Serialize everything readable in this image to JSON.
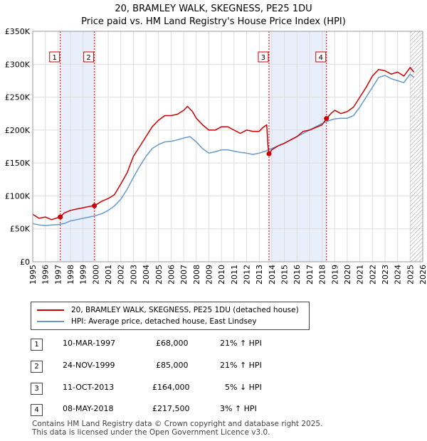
{
  "title_line1": "20, BRAMLEY WALK, SKEGNESS, PE25 1DU",
  "title_line2": "Price paid vs. HM Land Registry's House Price Index (HPI)",
  "legend": {
    "red_label": "20, BRAMLEY WALK, SKEGNESS, PE25 1DU (detached house)",
    "blue_label": "HPI: Average price, detached house, East Lindsey"
  },
  "transactions": [
    {
      "num": "1",
      "date": "10-MAR-1997",
      "price": "£68,000",
      "hpi": "21% ↑ HPI"
    },
    {
      "num": "2",
      "date": "24-NOV-1999",
      "price": "£85,000",
      "hpi": "21% ↑ HPI"
    },
    {
      "num": "3",
      "date": "11-OCT-2013",
      "price": "£164,000",
      "hpi": "5% ↓ HPI"
    },
    {
      "num": "4",
      "date": "08-MAY-2018",
      "price": "£217,500",
      "hpi": "3% ↑ HPI"
    }
  ],
  "footer_line1": "Contains HM Land Registry data © Crown copyright and database right 2025.",
  "footer_line2": "This data is licensed under the Open Government Licence v3.0.",
  "colors": {
    "red": "#cc0000",
    "blue": "#6699cc",
    "band": "#e8eefa",
    "grid": "#dddddd"
  },
  "chart_data": {
    "type": "line",
    "xlim": [
      1995,
      2026
    ],
    "ylim": [
      0,
      350000
    ],
    "yticks": [
      0,
      50000,
      100000,
      150000,
      200000,
      250000,
      300000,
      350000
    ],
    "ytick_labels": [
      "£0",
      "£50K",
      "£100K",
      "£150K",
      "£200K",
      "£250K",
      "£300K",
      "£350K"
    ],
    "xticks": [
      1995,
      1996,
      1997,
      1998,
      1999,
      2000,
      2001,
      2002,
      2003,
      2004,
      2005,
      2006,
      2007,
      2008,
      2009,
      2010,
      2011,
      2012,
      2013,
      2014,
      2015,
      2016,
      2017,
      2018,
      2019,
      2020,
      2021,
      2022,
      2023,
      2024,
      2025,
      2026
    ],
    "xtick_labels": [
      "1995",
      "1996",
      "1997",
      "1998",
      "1999",
      "2000",
      "2001",
      "2002",
      "2003",
      "2004",
      "2005",
      "2006",
      "2007",
      "2008",
      "2009",
      "2010",
      "2011",
      "2012",
      "2013",
      "2014",
      "2015",
      "2016",
      "2017",
      "2018",
      "2019",
      "2020",
      "2021",
      "2022",
      "2023",
      "2024",
      "2025",
      "2026"
    ],
    "shaded_bands": [
      [
        1997.19,
        1999.9
      ],
      [
        2013.78,
        2018.35
      ]
    ],
    "hatch_from": 2025.0,
    "markers": [
      {
        "label": "1",
        "x": 1997.19,
        "y": 68000
      },
      {
        "label": "2",
        "x": 1999.9,
        "y": 85000
      },
      {
        "label": "3",
        "x": 2013.78,
        "y": 164000
      },
      {
        "label": "4",
        "x": 2018.35,
        "y": 217500
      }
    ],
    "series": [
      {
        "name": "20, BRAMLEY WALK, SKEGNESS, PE25 1DU (detached house)",
        "color": "#cc0000",
        "x": [
          1995.0,
          1995.5,
          1996.0,
          1996.5,
          1997.0,
          1997.19,
          1997.5,
          1998.0,
          1998.5,
          1999.0,
          1999.5,
          1999.9,
          2000.5,
          2001.0,
          2001.5,
          2002.0,
          2002.5,
          2003.0,
          2003.5,
          2004.0,
          2004.5,
          2005.0,
          2005.5,
          2006.0,
          2006.5,
          2007.0,
          2007.3,
          2007.7,
          2008.0,
          2008.5,
          2009.0,
          2009.5,
          2010.0,
          2010.5,
          2011.0,
          2011.5,
          2012.0,
          2012.5,
          2013.0,
          2013.3,
          2013.6,
          2013.7,
          2013.78,
          2014.0,
          2014.5,
          2015.0,
          2015.5,
          2016.0,
          2016.5,
          2017.0,
          2017.5,
          2018.0,
          2018.35,
          2018.7,
          2019.0,
          2019.5,
          2020.0,
          2020.5,
          2021.0,
          2021.5,
          2022.0,
          2022.5,
          2023.0,
          2023.5,
          2024.0,
          2024.5,
          2025.0,
          2025.3
        ],
        "y": [
          72000,
          66000,
          68000,
          64000,
          67000,
          68000,
          74000,
          78000,
          80000,
          82000,
          84000,
          85000,
          92000,
          96000,
          102000,
          118000,
          135000,
          160000,
          175000,
          190000,
          205000,
          215000,
          222000,
          222000,
          224000,
          230000,
          236000,
          228000,
          218000,
          208000,
          200000,
          200000,
          205000,
          205000,
          200000,
          195000,
          200000,
          198000,
          198000,
          204000,
          208000,
          175000,
          164000,
          170000,
          176000,
          180000,
          185000,
          190000,
          198000,
          200000,
          204000,
          208000,
          217500,
          225000,
          230000,
          225000,
          228000,
          235000,
          250000,
          265000,
          282000,
          292000,
          290000,
          285000,
          288000,
          282000,
          295000,
          288000
        ]
      },
      {
        "name": "HPI: Average price, detached house, East Lindsey",
        "color": "#6699cc",
        "x": [
          1995.0,
          1995.5,
          1996.0,
          1996.5,
          1997.0,
          1997.5,
          1998.0,
          1998.5,
          1999.0,
          1999.5,
          2000.0,
          2000.5,
          2001.0,
          2001.5,
          2002.0,
          2002.5,
          2003.0,
          2003.5,
          2004.0,
          2004.5,
          2005.0,
          2005.5,
          2006.0,
          2006.5,
          2007.0,
          2007.5,
          2008.0,
          2008.5,
          2009.0,
          2009.5,
          2010.0,
          2010.5,
          2011.0,
          2011.5,
          2012.0,
          2012.5,
          2013.0,
          2013.5,
          2014.0,
          2014.5,
          2015.0,
          2015.5,
          2016.0,
          2016.5,
          2017.0,
          2017.5,
          2018.0,
          2018.5,
          2019.0,
          2019.5,
          2020.0,
          2020.5,
          2021.0,
          2021.5,
          2022.0,
          2022.5,
          2023.0,
          2023.5,
          2024.0,
          2024.5,
          2025.0,
          2025.3
        ],
        "y": [
          58000,
          56000,
          55000,
          56000,
          56500,
          58000,
          62000,
          64000,
          66000,
          68000,
          70000,
          73000,
          78000,
          85000,
          95000,
          110000,
          128000,
          145000,
          160000,
          172000,
          178000,
          182000,
          183000,
          185000,
          188000,
          190000,
          182000,
          172000,
          165000,
          167000,
          170000,
          170000,
          168000,
          166000,
          165000,
          163000,
          165000,
          168000,
          172000,
          176000,
          180000,
          185000,
          190000,
          195000,
          200000,
          205000,
          210000,
          214000,
          217000,
          218000,
          218000,
          222000,
          235000,
          250000,
          265000,
          280000,
          283000,
          278000,
          275000,
          272000,
          285000,
          280000
        ]
      }
    ]
  }
}
